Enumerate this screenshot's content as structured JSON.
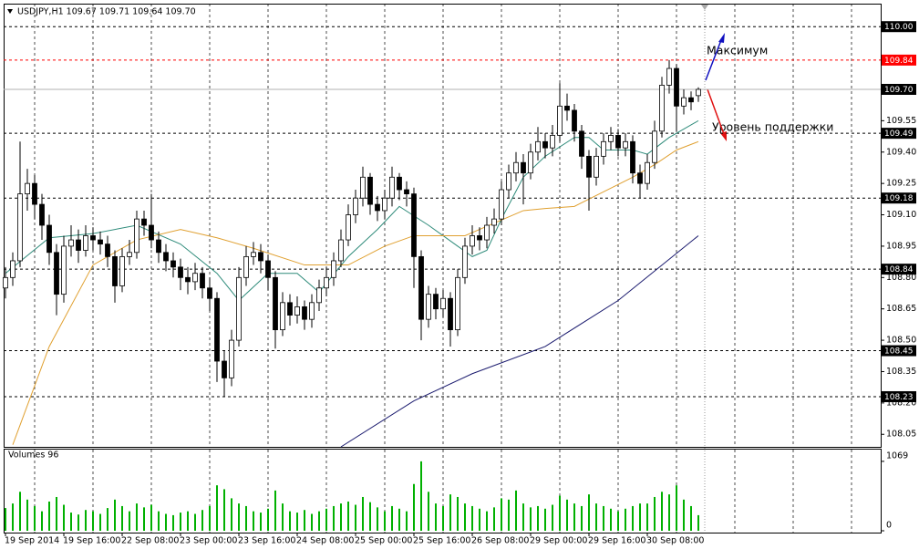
{
  "chart_data": [
    {
      "type": "candlestick",
      "title": "USDJPY,H1  109.67 109.71 109.64 109.70",
      "categories": [
        "19 Sep 2014",
        null,
        null,
        null,
        null,
        null,
        null,
        null,
        "19 Sep 16:00",
        null,
        null,
        null,
        null,
        null,
        null,
        null,
        "22 Sep 08:00",
        null,
        null,
        null,
        null,
        null,
        null,
        null,
        "23 Sep 00:00",
        null,
        null,
        null,
        null,
        null,
        null,
        null,
        "23 Sep 16:00",
        null,
        null,
        null,
        null,
        null,
        null,
        null,
        "24 Sep 08:00",
        null,
        null,
        null,
        null,
        null,
        null,
        null,
        "25 Sep 00:00",
        null,
        null,
        null,
        null,
        null,
        null,
        null,
        "25 Sep 16:00",
        null,
        null,
        null,
        null,
        null,
        null,
        null,
        "26 Sep 08:00",
        null,
        null,
        null,
        null,
        null,
        null,
        null,
        "29 Sep 00:00",
        null,
        null,
        null,
        null,
        null,
        null,
        null,
        "29 Sep 16:00",
        null,
        null,
        null,
        null,
        null,
        null,
        null,
        "30 Sep 08:00",
        null,
        null,
        null,
        null,
        null,
        null,
        null
      ],
      "open": [
        108.75,
        108.8,
        108.88,
        109.2,
        109.25,
        109.15,
        109.05,
        108.92,
        108.72,
        108.95,
        108.98,
        108.93,
        109.0,
        108.98,
        108.96,
        108.9,
        108.76,
        108.9,
        108.92,
        109.08,
        109.05,
        108.98,
        108.92,
        108.88,
        108.85,
        108.8,
        108.78,
        108.82,
        108.75,
        108.7,
        108.4,
        108.32,
        108.5,
        108.8,
        108.9,
        108.92,
        108.88,
        108.8,
        108.55,
        108.68,
        108.62,
        108.66,
        108.6,
        108.68,
        108.75,
        108.8,
        108.88,
        108.98,
        109.1,
        109.18,
        109.28,
        109.15,
        109.12,
        109.18,
        109.28,
        109.22,
        109.2,
        108.9,
        108.6,
        108.72,
        108.65,
        108.7,
        108.55,
        108.8,
        108.95,
        109.0,
        108.98,
        109.05,
        109.08,
        109.22,
        109.3,
        109.35,
        109.3,
        109.4,
        109.45,
        109.42,
        109.48,
        109.62,
        109.6,
        109.5,
        109.38,
        109.28,
        109.38,
        109.45,
        109.48,
        109.42,
        109.45,
        109.3,
        109.25,
        109.35,
        109.5,
        109.72,
        109.8,
        109.62,
        109.66,
        109.67
      ],
      "high": [
        108.85,
        108.92,
        109.45,
        109.32,
        109.29,
        109.2,
        109.1,
        108.96,
        109.0,
        109.05,
        109.03,
        109.05,
        109.04,
        109.02,
        109.0,
        108.93,
        108.94,
        108.98,
        109.12,
        109.12,
        109.2,
        109.02,
        108.96,
        108.92,
        108.89,
        108.85,
        108.87,
        108.85,
        108.8,
        108.73,
        108.45,
        108.55,
        108.85,
        108.95,
        108.97,
        108.96,
        108.91,
        108.83,
        108.73,
        108.72,
        108.71,
        108.69,
        108.72,
        108.79,
        108.85,
        108.92,
        109.03,
        109.15,
        109.22,
        109.33,
        109.3,
        109.19,
        109.22,
        109.33,
        109.3,
        109.26,
        109.23,
        108.93,
        108.76,
        108.75,
        108.74,
        108.73,
        108.84,
        108.99,
        109.05,
        109.04,
        109.09,
        109.13,
        109.26,
        109.34,
        109.4,
        109.39,
        109.44,
        109.52,
        109.49,
        109.53,
        109.73,
        109.68,
        109.63,
        109.53,
        109.41,
        109.42,
        109.49,
        109.52,
        109.51,
        109.49,
        109.48,
        109.34,
        109.39,
        109.55,
        109.76,
        109.84,
        109.82,
        109.7,
        109.69,
        109.71
      ],
      "low": [
        108.7,
        108.76,
        108.85,
        109.12,
        109.08,
        108.98,
        108.86,
        108.62,
        108.68,
        108.9,
        108.87,
        108.9,
        108.93,
        108.91,
        108.85,
        108.68,
        108.73,
        108.86,
        108.89,
        109.0,
        108.94,
        108.87,
        108.83,
        108.8,
        108.74,
        108.72,
        108.74,
        108.7,
        108.64,
        108.3,
        108.23,
        108.28,
        108.47,
        108.76,
        108.86,
        108.82,
        108.74,
        108.46,
        108.52,
        108.57,
        108.58,
        108.55,
        108.56,
        108.64,
        108.71,
        108.76,
        108.85,
        108.95,
        109.06,
        109.14,
        109.1,
        109.07,
        109.08,
        109.14,
        109.17,
        109.14,
        108.75,
        108.5,
        108.56,
        108.6,
        108.61,
        108.47,
        108.52,
        108.77,
        108.91,
        108.93,
        108.94,
        109.01,
        109.05,
        109.18,
        109.26,
        109.15,
        109.27,
        109.36,
        109.37,
        109.38,
        109.45,
        109.55,
        109.45,
        109.32,
        109.12,
        109.24,
        109.34,
        109.41,
        109.38,
        109.38,
        109.25,
        109.18,
        109.22,
        109.32,
        109.47,
        109.68,
        109.5,
        109.58,
        109.6,
        109.64
      ],
      "close": [
        108.8,
        108.88,
        109.2,
        109.25,
        109.15,
        109.05,
        108.92,
        108.72,
        108.95,
        108.98,
        108.93,
        109.0,
        108.98,
        108.96,
        108.9,
        108.76,
        108.9,
        108.92,
        109.08,
        109.05,
        108.98,
        108.92,
        108.88,
        108.85,
        108.8,
        108.78,
        108.82,
        108.75,
        108.7,
        108.4,
        108.32,
        108.5,
        108.8,
        108.9,
        108.92,
        108.88,
        108.8,
        108.55,
        108.68,
        108.62,
        108.66,
        108.6,
        108.68,
        108.75,
        108.8,
        108.88,
        108.98,
        109.1,
        109.18,
        109.28,
        109.15,
        109.12,
        109.18,
        109.28,
        109.22,
        109.2,
        108.9,
        108.6,
        108.72,
        108.65,
        108.7,
        108.55,
        108.8,
        108.95,
        109.0,
        108.98,
        109.05,
        109.08,
        109.22,
        109.3,
        109.35,
        109.3,
        109.4,
        109.45,
        109.42,
        109.48,
        109.62,
        109.6,
        109.5,
        109.38,
        109.28,
        109.38,
        109.45,
        109.48,
        109.42,
        109.45,
        109.3,
        109.25,
        109.35,
        109.5,
        109.72,
        109.8,
        109.62,
        109.66,
        109.64,
        109.7
      ],
      "up_color": "#ffffff",
      "down_color": "#000000",
      "outline_color": "#000000",
      "series": [
        {
          "color": "#2e8b7a",
          "x": [
            0,
            6,
            12,
            18,
            24,
            29,
            32,
            36,
            40,
            43,
            47,
            51,
            54,
            58,
            62,
            64,
            66,
            68,
            71,
            74,
            78,
            80,
            82,
            86,
            88,
            91,
            95
          ],
          "values": [
            108.82,
            108.99,
            109.01,
            109.05,
            108.96,
            108.82,
            108.69,
            108.82,
            108.82,
            108.73,
            108.9,
            109.03,
            109.14,
            109.05,
            108.95,
            108.9,
            108.93,
            109.08,
            109.28,
            109.38,
            109.47,
            109.47,
            109.41,
            109.41,
            109.39,
            109.47,
            109.55
          ]
        },
        {
          "color": "#e0a030",
          "x": [
            1,
            6,
            12,
            18,
            24,
            29,
            34,
            41,
            47,
            52,
            56,
            59,
            63,
            67,
            71,
            74,
            78,
            82,
            86,
            89,
            92,
            95
          ],
          "values": [
            108.0,
            108.47,
            108.86,
            108.98,
            109.03,
            108.99,
            108.94,
            108.86,
            108.86,
            108.95,
            109.0,
            109.0,
            109.0,
            109.06,
            109.12,
            109.13,
            109.14,
            109.21,
            109.28,
            109.34,
            109.41,
            109.45
          ]
        },
        {
          "color": "#1a1a6e",
          "x": [
            46,
            56,
            64,
            74,
            84,
            95
          ],
          "values": [
            107.99,
            108.21,
            108.34,
            108.47,
            108.69,
            109.0
          ]
        }
      ],
      "ylim": [
        107.99,
        110.11
      ],
      "yticks": [
        {
          "value": 109.55,
          "label": "109.55"
        },
        {
          "value": 109.4,
          "label": "109.40"
        },
        {
          "value": 109.25,
          "label": "109.25"
        },
        {
          "value": 109.1,
          "label": "109.10"
        },
        {
          "value": 108.95,
          "label": "108.95"
        },
        {
          "value": 108.8,
          "label": "108.80"
        },
        {
          "value": 108.65,
          "label": "108.65"
        },
        {
          "value": 108.5,
          "label": "108.50"
        },
        {
          "value": 108.35,
          "label": "108.35"
        },
        {
          "value": 108.2,
          "label": "108.20"
        },
        {
          "value": 108.05,
          "label": "108.05"
        }
      ],
      "levels": [
        {
          "value": 110.0,
          "label": "110.00"
        },
        {
          "value": 109.49,
          "label": "109.49"
        },
        {
          "value": 109.18,
          "label": "109.18"
        },
        {
          "value": 108.84,
          "label": "108.84"
        },
        {
          "value": 108.45,
          "label": "108.45"
        },
        {
          "value": 108.23,
          "label": "108.23"
        }
      ],
      "high_level": {
        "value": 109.84,
        "label": "109.84",
        "color": "#ff0000"
      },
      "bid_line": {
        "value": 109.7,
        "label": "109.70"
      },
      "annotations": [
        "Максимум",
        "Уровень поддержки"
      ]
    },
    {
      "type": "bar",
      "title": "Volumes 96",
      "color": "#00b000",
      "values": [
        350,
        420,
        600,
        480,
        380,
        300,
        450,
        520,
        400,
        280,
        250,
        320,
        300,
        260,
        350,
        480,
        380,
        300,
        420,
        360,
        400,
        300,
        260,
        240,
        280,
        300,
        260,
        320,
        380,
        700,
        640,
        500,
        420,
        380,
        300,
        280,
        340,
        620,
        420,
        300,
        280,
        320,
        260,
        300,
        340,
        380,
        420,
        450,
        400,
        520,
        440,
        360,
        300,
        380,
        340,
        300,
        720,
        1069,
        600,
        420,
        380,
        560,
        520,
        420,
        380,
        340,
        300,
        360,
        500,
        480,
        620,
        420,
        360,
        380,
        340,
        400,
        540,
        480,
        420,
        380,
        560,
        420,
        380,
        340,
        300,
        340,
        380,
        420,
        420,
        520,
        600,
        560,
        700,
        480,
        380,
        240
      ],
      "ylim": [
        0,
        1250
      ],
      "yticks": [
        0,
        1069
      ]
    }
  ]
}
